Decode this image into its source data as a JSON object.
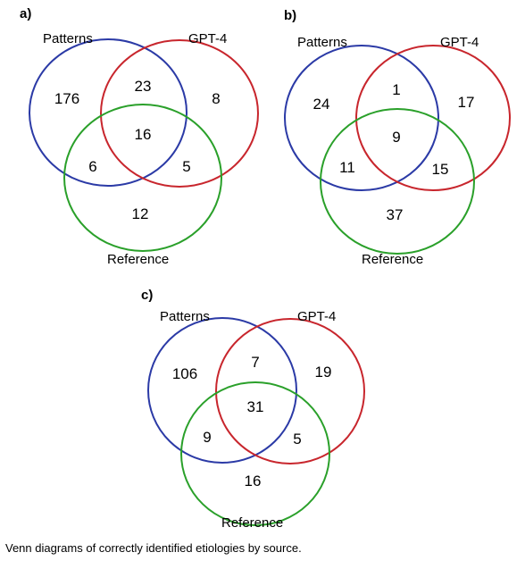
{
  "colors": {
    "patterns": "#2b3aa6",
    "gpt4": "#c8262d",
    "reference": "#2aa02a"
  },
  "panels": [
    {
      "label": "a)",
      "sets": {
        "patterns": "Patterns",
        "gpt4": "GPT-4",
        "reference": "Reference"
      },
      "counts": {
        "patterns_only": "176",
        "gpt4_only": "8",
        "reference_only": "12",
        "patterns_gpt4": "23",
        "patterns_reference": "6",
        "gpt4_reference": "5",
        "all": "16"
      }
    },
    {
      "label": "b)",
      "sets": {
        "patterns": "Patterns",
        "gpt4": "GPT-4",
        "reference": "Reference"
      },
      "counts": {
        "patterns_only": "24",
        "gpt4_only": "17",
        "reference_only": "37",
        "patterns_gpt4": "1",
        "patterns_reference": "11",
        "gpt4_reference": "15",
        "all": "9"
      }
    },
    {
      "label": "c)",
      "sets": {
        "patterns": "Patterns",
        "gpt4": "GPT-4",
        "reference": "Reference"
      },
      "counts": {
        "patterns_only": "106",
        "gpt4_only": "19",
        "reference_only": "16",
        "patterns_gpt4": "7",
        "patterns_reference": "9",
        "gpt4_reference": "5",
        "all": "31"
      }
    }
  ],
  "caption": "Venn diagrams of correctly identified etiologies by source."
}
